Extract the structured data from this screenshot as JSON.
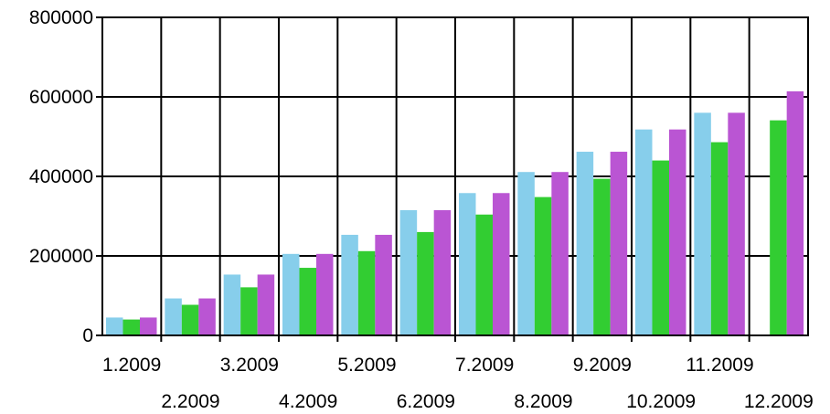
{
  "chart_data": {
    "type": "bar",
    "categories": [
      "1.2009",
      "2.2009",
      "3.2009",
      "4.2009",
      "5.2009",
      "6.2009",
      "7.2009",
      "8.2009",
      "9.2009",
      "10.2009",
      "11.2009",
      "12.2009"
    ],
    "series": [
      {
        "values": [
          45000,
          93000,
          153000,
          205000,
          253000,
          315000,
          358000,
          411000,
          462000,
          518000,
          560000,
          null
        ],
        "color": "#87ceeb"
      },
      {
        "values": [
          40000,
          77000,
          121000,
          170000,
          212000,
          260000,
          304000,
          348000,
          394000,
          440000,
          486000,
          541000
        ],
        "color": "#32cd32"
      },
      {
        "values": [
          45000,
          93000,
          153000,
          205000,
          253000,
          315000,
          358000,
          411000,
          462000,
          518000,
          560000,
          614000
        ],
        "color": "#ba55d3"
      }
    ],
    "y_ticks": [
      "0",
      "200000",
      "400000",
      "600000",
      "800000"
    ],
    "ylim": [
      0,
      800000
    ],
    "grid": true,
    "legend": "none",
    "title": "",
    "xlabel": "",
    "ylabel": ""
  }
}
